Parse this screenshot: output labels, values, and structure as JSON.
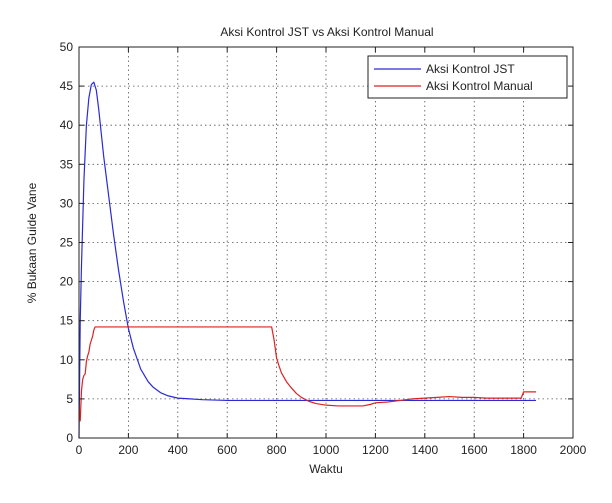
{
  "chart_data": {
    "type": "line",
    "title": "Aksi Kontrol JST vs Aksi Kontrol Manual",
    "xlabel": "Waktu",
    "ylabel": "% Bukaan Guide Vane",
    "xlim": [
      0,
      2000
    ],
    "ylim": [
      0,
      50
    ],
    "xticks": [
      0,
      200,
      400,
      600,
      800,
      1000,
      1200,
      1400,
      1600,
      1800,
      2000
    ],
    "yticks": [
      0,
      5,
      10,
      15,
      20,
      25,
      30,
      35,
      40,
      45,
      50
    ],
    "grid": true,
    "legend_position": "top-right",
    "series": [
      {
        "name": "Aksi Kontrol JST",
        "color": "#2b2bd6",
        "x": [
          0,
          5,
          10,
          20,
          30,
          40,
          50,
          60,
          70,
          80,
          90,
          100,
          120,
          140,
          160,
          180,
          200,
          220,
          250,
          280,
          300,
          330,
          360,
          400,
          450,
          500,
          550,
          600,
          800,
          1000,
          1200,
          1400,
          1600,
          1800,
          1850
        ],
        "y": [
          0,
          15,
          22,
          33,
          40,
          43.5,
          45.2,
          45.5,
          44.5,
          42,
          39,
          36,
          31,
          26,
          21.5,
          17.5,
          14,
          11.5,
          8.8,
          7.2,
          6.5,
          5.8,
          5.4,
          5.1,
          5.0,
          4.9,
          4.85,
          4.8,
          4.8,
          4.8,
          4.8,
          4.8,
          4.8,
          4.8,
          4.8
        ]
      },
      {
        "name": "Aksi Kontrol Manual",
        "color": "#dd2222",
        "x": [
          0,
          5,
          10,
          15,
          20,
          25,
          30,
          35,
          40,
          45,
          50,
          55,
          60,
          65,
          70,
          780,
          790,
          800,
          810,
          820,
          840,
          860,
          880,
          900,
          930,
          960,
          1000,
          1050,
          1100,
          1150,
          1180,
          1200,
          1250,
          1300,
          1350,
          1400,
          1450,
          1500,
          1550,
          1600,
          1650,
          1700,
          1750,
          1790,
          1800,
          1850
        ],
        "y": [
          4,
          2.2,
          6,
          7.5,
          8,
          8.2,
          9.8,
          10.5,
          11,
          12,
          12.5,
          13,
          13.8,
          14.2,
          14.2,
          14.2,
          12.5,
          10.2,
          9.2,
          8.3,
          7.2,
          6.4,
          5.7,
          5.2,
          4.7,
          4.4,
          4.2,
          4.1,
          4.1,
          4.1,
          4.3,
          4.5,
          4.6,
          4.8,
          5.0,
          5.1,
          5.2,
          5.3,
          5.2,
          5.2,
          5.1,
          5.1,
          5.1,
          5.1,
          5.9,
          5.9
        ]
      }
    ]
  }
}
